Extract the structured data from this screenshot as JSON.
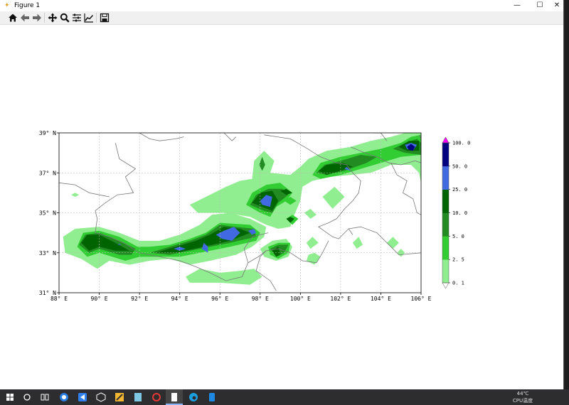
{
  "window": {
    "title": "Figure 1",
    "minimize": "—",
    "maximize": "☐",
    "close": "✕"
  },
  "toolbar": {
    "buttons": [
      {
        "name": "home",
        "icon": "home-icon"
      },
      {
        "name": "back",
        "icon": "arrow-left-icon"
      },
      {
        "name": "forward",
        "icon": "arrow-right-icon"
      },
      {
        "name": "pan",
        "icon": "move-icon"
      },
      {
        "name": "zoom",
        "icon": "magnifier-icon"
      },
      {
        "name": "subplots",
        "icon": "sliders-icon"
      },
      {
        "name": "edit-axes",
        "icon": "line-chart-icon"
      },
      {
        "name": "save",
        "icon": "floppy-disk-icon"
      }
    ]
  },
  "chart_data": {
    "type": "contourf",
    "title": "",
    "x_ticks": [
      "88° E",
      "90° E",
      "92° E",
      "94° E",
      "96° E",
      "98° E",
      "100° E",
      "102° E",
      "104° E",
      "106° E"
    ],
    "y_ticks": [
      "31° N",
      "33° N",
      "35° N",
      "37° N",
      "39° N"
    ],
    "xlim": [
      88,
      106
    ],
    "ylim": [
      31,
      39
    ],
    "grid": true,
    "levels": [
      0.1,
      2.5,
      5.0,
      10.0,
      25.0,
      50.0,
      100.0
    ],
    "level_labels": [
      "0.1",
      "2.5",
      "5.0",
      "10.0",
      "25.0",
      "50.0",
      "100.0"
    ],
    "colors": [
      "#90ee90",
      "#32cd32",
      "#228b22",
      "#006400",
      "#4169e1",
      "#000080"
    ],
    "extend_max_color": "#ff00ff",
    "extend_min_color": "#ffffff",
    "colorbar": "right"
  },
  "taskbar": {
    "temp": "44℃",
    "temp_label": "CPU温度"
  }
}
